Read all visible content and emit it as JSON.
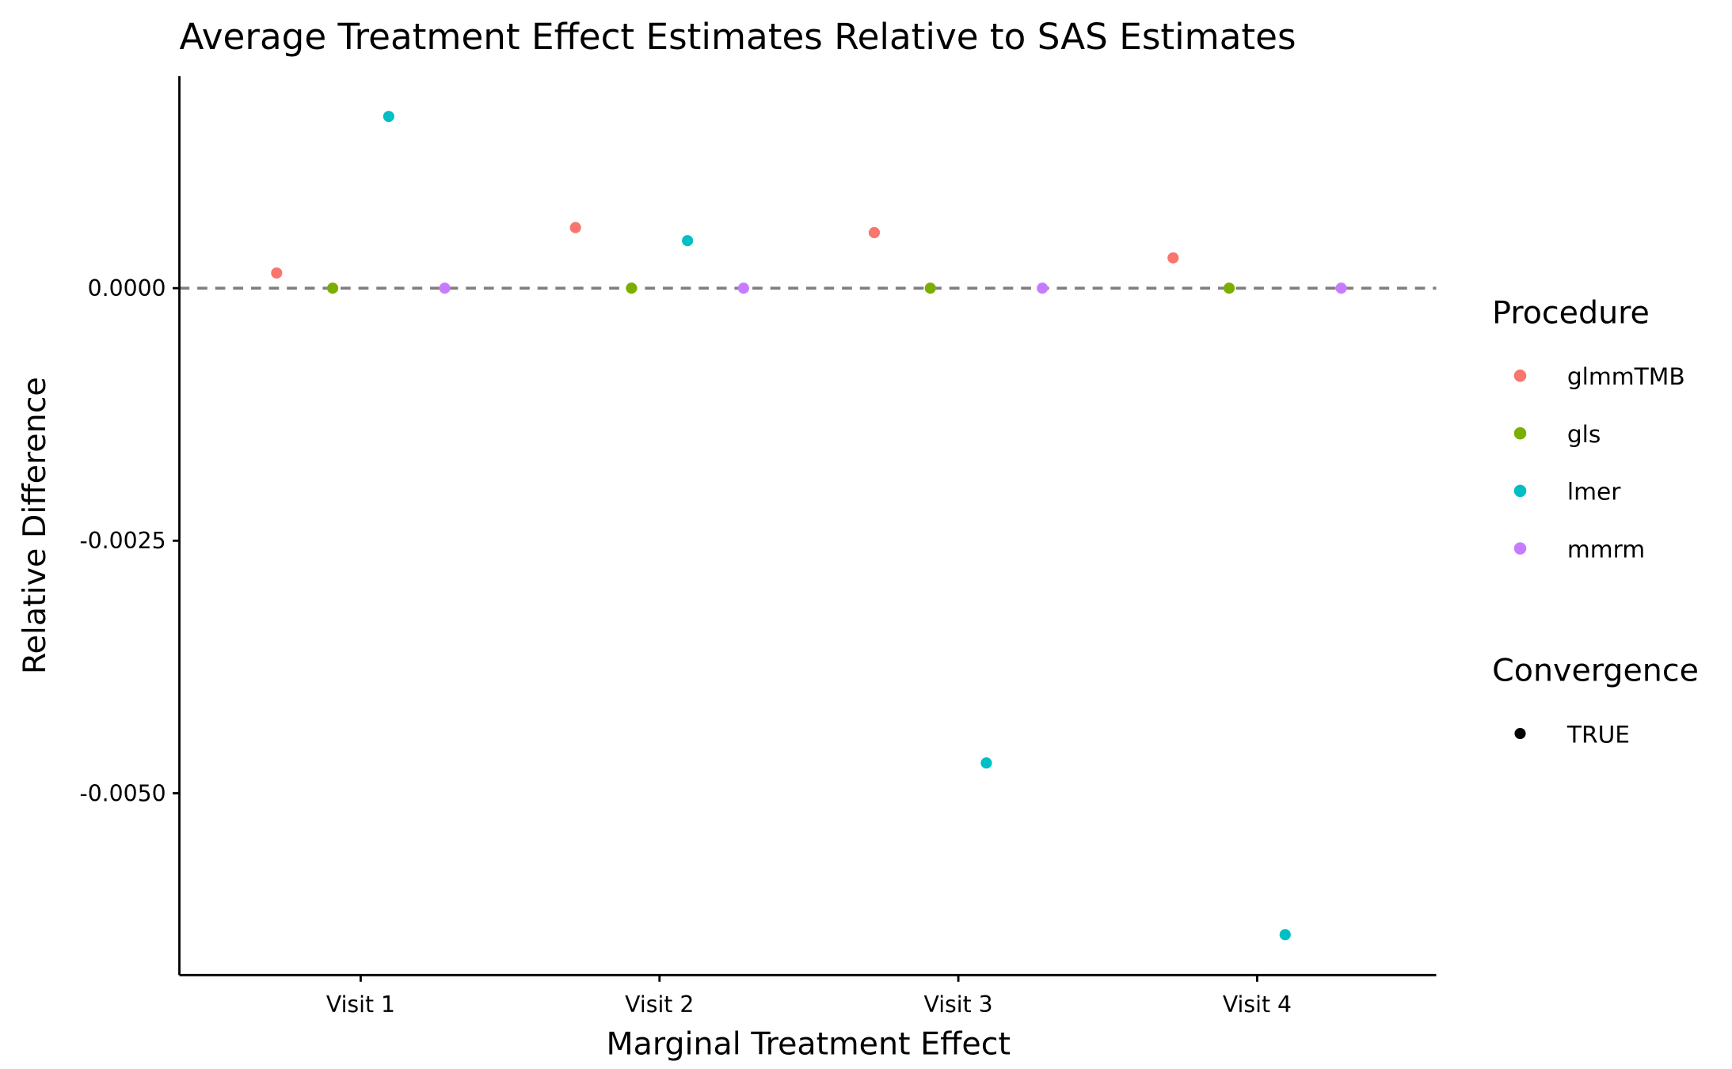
{
  "chart_data": {
    "type": "scatter",
    "title": "Average Treatment Effect Estimates Relative to SAS Estimates",
    "xlabel": "Marginal Treatment Effect",
    "ylabel": "Relative Difference",
    "categories": [
      "Visit 1",
      "Visit 2",
      "Visit 3",
      "Visit 4"
    ],
    "ylim": [
      -0.0068,
      0.0021
    ],
    "yticks": [
      0.0,
      -0.0025,
      -0.005
    ],
    "ytick_labels": [
      "0.0000",
      "-0.0025",
      "-0.0050"
    ],
    "reference_line": 0,
    "grid": false,
    "legend_placement": "right",
    "series": [
      {
        "name": "glmmTMB",
        "color": "#F8766D",
        "values": [
          0.00015,
          0.0006,
          0.00055,
          0.0003
        ]
      },
      {
        "name": "gls",
        "color": "#7CAE00",
        "values": [
          0.0,
          0.0,
          0.0,
          0.0
        ]
      },
      {
        "name": "lmer",
        "color": "#00BFC4",
        "values": [
          0.0017,
          0.00047,
          -0.0047,
          -0.0064
        ]
      },
      {
        "name": "mmrm",
        "color": "#C77CFF",
        "values": [
          0.0,
          0.0,
          0.0,
          0.0
        ]
      }
    ],
    "legends": {
      "procedure_title": "Procedure",
      "convergence_title": "Convergence",
      "convergence_items": [
        "TRUE"
      ]
    }
  }
}
